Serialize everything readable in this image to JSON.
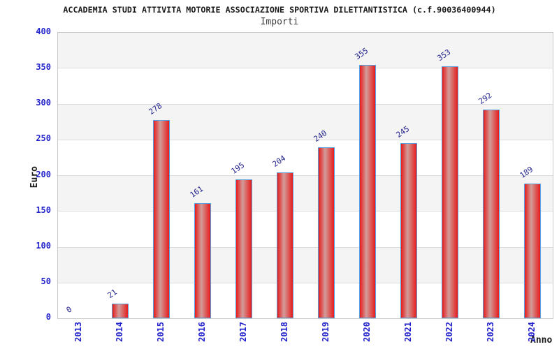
{
  "header": {
    "title": "ACCADEMIA STUDI ATTIVITA MOTORIE ASSOCIAZIONE SPORTIVA DILETTANTISTICA (c.f.90036400944)",
    "subtitle": "Importi"
  },
  "chart_data": {
    "type": "bar",
    "title": "Importi",
    "categories": [
      "2013",
      "2014",
      "2015",
      "2016",
      "2017",
      "2018",
      "2019",
      "2020",
      "2021",
      "2022",
      "2023",
      "2024"
    ],
    "values": [
      0,
      21,
      278,
      161,
      195,
      204,
      240,
      355,
      245,
      353,
      292,
      189
    ],
    "xlabel": "Anno",
    "ylabel": "Euro",
    "ylim": [
      0,
      400
    ],
    "ytick_step": 50,
    "legend": "none",
    "grid": "alternating horizontal bands every 50 units",
    "colors": {
      "bar_edge": "#e61c1c",
      "bar_center": "#d29d99",
      "bar_border": "#58a0dd",
      "axis_tick_label": "#2323cc",
      "value_label": "#20208c",
      "band_gray": "#f4f4f4",
      "band_white": "#ffffff",
      "grid_line": "#dcdcdc",
      "plot_border": "#c9c9c9",
      "title_color": "#1a1a1a",
      "subtitle_color": "#3f3f3f"
    }
  }
}
